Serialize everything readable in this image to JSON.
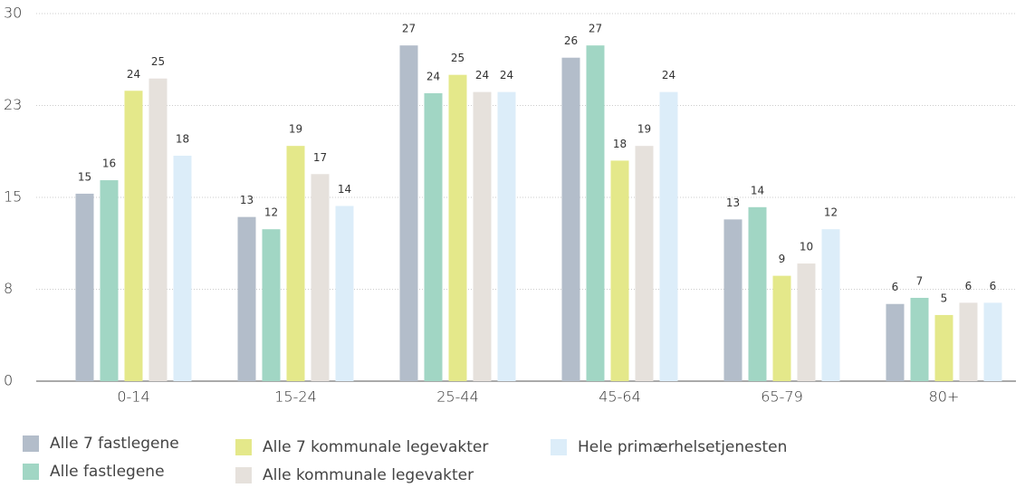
{
  "chart_data": {
    "type": "bar",
    "categories": [
      "0-14",
      "15-24",
      "25-44",
      "45-64",
      "65-79",
      "80+"
    ],
    "series": [
      {
        "name": "Alle 7 fastlegene",
        "color": "#b3bdca",
        "values": [
          15.3,
          13.4,
          27.4,
          26.4,
          13.2,
          6.3
        ],
        "value_labels": [
          "15",
          "13",
          "27",
          "26",
          "13",
          "6"
        ]
      },
      {
        "name": "Alle fastlegene",
        "color": "#a1d6c4",
        "values": [
          16.4,
          12.4,
          23.5,
          27.4,
          14.2,
          6.8
        ],
        "value_labels": [
          "16",
          "12",
          "24",
          "27",
          "14",
          "7"
        ]
      },
      {
        "name": "Alle 7 kommunale legevakter",
        "color": "#e4e88a",
        "values": [
          23.7,
          19.2,
          25.0,
          18.0,
          8.6,
          5.4
        ],
        "value_labels": [
          "24",
          "19",
          "25",
          "18",
          "9",
          "5"
        ]
      },
      {
        "name": "Alle kommunale legevakter",
        "color": "#e6e1dc",
        "values": [
          24.7,
          16.9,
          23.6,
          19.2,
          9.6,
          6.4
        ],
        "value_labels": [
          "25",
          "17",
          "24",
          "19",
          "10",
          "6"
        ]
      },
      {
        "name": "Hele primærhelsetjenesten",
        "color": "#dcedf9",
        "values": [
          18.4,
          14.3,
          23.6,
          23.6,
          12.4,
          6.4
        ],
        "value_labels": [
          "18",
          "14",
          "24",
          "24",
          "12",
          "6"
        ]
      }
    ],
    "ylim": [
      0,
      30
    ],
    "yticks": [
      0,
      {
        "value": 7.5,
        "label": "8"
      },
      15,
      {
        "value": 22.5,
        "label": "23"
      },
      30
    ],
    "grid": true,
    "legend": "bottom"
  }
}
